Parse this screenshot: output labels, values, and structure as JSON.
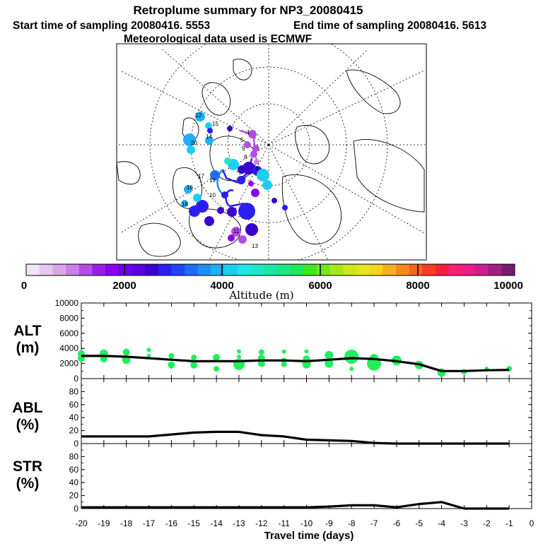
{
  "header": {
    "title": "Retroplume summary for NP3_20080415",
    "start_label": "Start time of sampling 20080416.  5553",
    "end_label": "End time of sampling 20080416.  5613",
    "met_label": "Meteorological data used is ECMWF"
  },
  "colorbar": {
    "ticks": [
      "0",
      "2000",
      "4000",
      "6000",
      "8000",
      "10000"
    ],
    "label": "Altitude (m)",
    "colors": [
      "#f2e3f5",
      "#e8c7f0",
      "#dba5eb",
      "#cc7fe6",
      "#b34de6",
      "#9a1fe6",
      "#8a00f0",
      "#6c00f2",
      "#5a00d9",
      "#3d00cc",
      "#2a1ff0",
      "#1f45f5",
      "#1f6cf5",
      "#1f8ff5",
      "#1fb0f5",
      "#1fcdf2",
      "#1fe6e6",
      "#1fe6c8",
      "#1fe6a5",
      "#1fe682",
      "#1fe65f",
      "#3de61f",
      "#73e61f",
      "#a5e61f",
      "#cce61f",
      "#e6e61f",
      "#f5d21f",
      "#f5b01f",
      "#f58a1f",
      "#f5641f",
      "#f53d1f",
      "#f51f3d",
      "#f51f73",
      "#e61f8a",
      "#cc1f8f",
      "#a51f82",
      "#7a1a6e"
    ]
  },
  "map": {
    "name": "north-polar-plume-map",
    "labels": [
      "12",
      "15",
      "14",
      "16",
      "17",
      "19",
      "18",
      "10",
      "9",
      "8",
      "4",
      "1",
      "5",
      "13",
      "11",
      "20"
    ],
    "point_colors": [
      "#1fb0f5",
      "#1fcdf2",
      "#2a1ff0",
      "#3d00cc",
      "#b34de6",
      "#8a00f0",
      "#1f6cf5",
      "#1fe6c8"
    ]
  },
  "chart_data": [
    {
      "type": "scatter",
      "name": "ALT",
      "label_line1": "ALT",
      "label_line2": "(m)",
      "ylim": [
        0,
        10000
      ],
      "yticks": [
        "0",
        "2000",
        "4000",
        "6000",
        "8000",
        "10000"
      ],
      "line": {
        "x": [
          -20,
          -19,
          -18,
          -17,
          -16,
          -15,
          -14,
          -13,
          -12,
          -11,
          -10,
          -9,
          -8,
          -7,
          -6,
          -5,
          -4,
          -3,
          -2,
          -1
        ],
        "y": [
          3000,
          3000,
          2900,
          2700,
          2500,
          2300,
          2300,
          2300,
          2400,
          2400,
          2300,
          2500,
          2700,
          2600,
          2300,
          1900,
          1000,
          1000,
          1100,
          1150
        ]
      },
      "points": [
        {
          "x": -20,
          "y": 3300,
          "s": 5
        },
        {
          "x": -20,
          "y": 2700,
          "s": 5
        },
        {
          "x": -19,
          "y": 3300,
          "s": 6
        },
        {
          "x": -19,
          "y": 2600,
          "s": 5
        },
        {
          "x": -18,
          "y": 3500,
          "s": 5
        },
        {
          "x": -18,
          "y": 2500,
          "s": 6
        },
        {
          "x": -17,
          "y": 3800,
          "s": 3
        },
        {
          "x": -17,
          "y": 3000,
          "s": 3
        },
        {
          "x": -16,
          "y": 3000,
          "s": 4
        },
        {
          "x": -16,
          "y": 1800,
          "s": 5
        },
        {
          "x": -15,
          "y": 2800,
          "s": 4
        },
        {
          "x": -15,
          "y": 1800,
          "s": 5
        },
        {
          "x": -14,
          "y": 2800,
          "s": 5
        },
        {
          "x": -14,
          "y": 1300,
          "s": 4
        },
        {
          "x": -13,
          "y": 3600,
          "s": 3
        },
        {
          "x": -13,
          "y": 2900,
          "s": 3
        },
        {
          "x": -13,
          "y": 1900,
          "s": 8
        },
        {
          "x": -12,
          "y": 3500,
          "s": 4
        },
        {
          "x": -12,
          "y": 2700,
          "s": 5
        },
        {
          "x": -12,
          "y": 2000,
          "s": 5
        },
        {
          "x": -11,
          "y": 3600,
          "s": 3
        },
        {
          "x": -11,
          "y": 2400,
          "s": 4
        },
        {
          "x": -11,
          "y": 1900,
          "s": 4
        },
        {
          "x": -10,
          "y": 3600,
          "s": 3
        },
        {
          "x": -10,
          "y": 2600,
          "s": 5
        },
        {
          "x": -10,
          "y": 1900,
          "s": 6
        },
        {
          "x": -9,
          "y": 3100,
          "s": 6
        },
        {
          "x": -9,
          "y": 2000,
          "s": 6
        },
        {
          "x": -8,
          "y": 2900,
          "s": 10
        },
        {
          "x": -8,
          "y": 1300,
          "s": 3
        },
        {
          "x": -7,
          "y": 2700,
          "s": 6
        },
        {
          "x": -7,
          "y": 2000,
          "s": 10
        },
        {
          "x": -6,
          "y": 2400,
          "s": 7
        },
        {
          "x": -5,
          "y": 1800,
          "s": 6
        },
        {
          "x": -4,
          "y": 800,
          "s": 6
        },
        {
          "x": -3,
          "y": 900,
          "s": 4
        },
        {
          "x": -2,
          "y": 1300,
          "s": 3
        },
        {
          "x": -1,
          "y": 1300,
          "s": 4
        }
      ]
    },
    {
      "type": "line",
      "name": "ABL",
      "label_line1": "ABL",
      "label_line2": "(%)",
      "ylim": [
        0,
        100
      ],
      "yticks": [
        "0",
        "20",
        "40",
        "60",
        "80"
      ],
      "x": [
        -20,
        -19,
        -18,
        -17,
        -16,
        -15,
        -14,
        -13,
        -12,
        -11,
        -10,
        -9,
        -8,
        -7,
        -6,
        -5,
        -4,
        -3,
        -2,
        -1
      ],
      "y": [
        11,
        11,
        11,
        11,
        14,
        17,
        18,
        18,
        13,
        11,
        6,
        5,
        4,
        1,
        0,
        0,
        0,
        0,
        0,
        0
      ]
    },
    {
      "type": "line",
      "name": "STR",
      "label_line1": "STR",
      "label_line2": "(%)",
      "ylim": [
        0,
        100
      ],
      "yticks": [
        "0",
        "20",
        "40",
        "60",
        "80"
      ],
      "x": [
        -20,
        -19,
        -18,
        -17,
        -16,
        -15,
        -14,
        -13,
        -12,
        -11,
        -10,
        -9,
        -8,
        -7,
        -6,
        -5,
        -4,
        -3,
        -2,
        -1
      ],
      "y": [
        2,
        2,
        2,
        2,
        2,
        2,
        2,
        2,
        2,
        2,
        2,
        3,
        5,
        5,
        2,
        7,
        10,
        0,
        0,
        0
      ]
    }
  ],
  "xaxis": {
    "title": "Travel time (days)",
    "ticks": [
      "-20",
      "-19",
      "-18",
      "-17",
      "-16",
      "-15",
      "-14",
      "-13",
      "-12",
      "-11",
      "-10",
      "-9",
      "-8",
      "-7",
      "-6",
      "-5",
      "-4",
      "-3",
      "-2",
      "-1",
      "0"
    ]
  },
  "style": {
    "line_color": "#000000",
    "point_color": "#1ff05a",
    "frame_color": "#000000"
  }
}
